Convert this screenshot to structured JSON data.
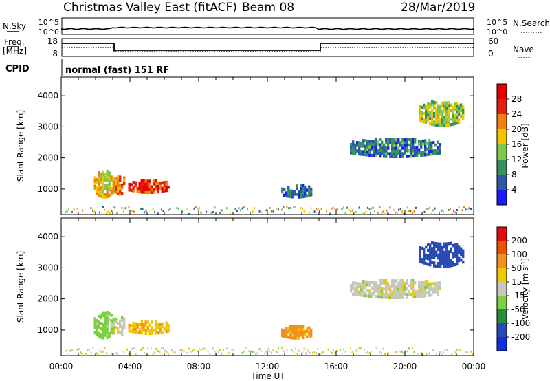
{
  "header": {
    "station_title": "Christmas Valley East (fitACF)",
    "beam_label": "Beam 08",
    "date_label": "28/Mar/2019",
    "cpid_label": "CPID",
    "mode_text": "normal (fast) 151 RF"
  },
  "noise_panel": {
    "left_label": "N.Sky",
    "right_label": "N.Search",
    "left_ticks": [
      "10^5",
      "10^0"
    ],
    "right_ticks": [
      "10^5",
      "10^0"
    ]
  },
  "freq_panel": {
    "left_label_1": "Freq.",
    "left_label_2": "[MHz]",
    "right_label": "Nave",
    "left_ticks": [
      "18",
      "8"
    ],
    "right_ticks": [
      "60",
      "0"
    ]
  },
  "axes": {
    "ylabel": "Slant Range [km]",
    "xlabel": "Time UT",
    "y_ticks": [
      "1000",
      "2000",
      "3000",
      "4000"
    ],
    "x_ticks": [
      "00:00",
      "04:00",
      "08:00",
      "12:00",
      "16:00",
      "20:00",
      "00:00"
    ]
  },
  "power_scale": {
    "label": "Power [dB]",
    "ticks": [
      "4",
      "8",
      "12",
      "16",
      "20",
      "24",
      "28"
    ],
    "colors": [
      "#1a1aff",
      "#2d5aa8",
      "#3a8f5e",
      "#7ec850",
      "#f5c400",
      "#f08010",
      "#e02010",
      "#e80000"
    ]
  },
  "velocity_scale": {
    "label_main": "Velocity [m s",
    "label_sup": "-1",
    "label_end": "]",
    "ticks": [
      "200",
      "100",
      "50",
      "15",
      "-15",
      "-50",
      "-100",
      "-200"
    ],
    "colors": [
      "#1030e0",
      "#2a4ab8",
      "#2a8a40",
      "#7ad040",
      "#c8c8b8",
      "#f0c800",
      "#f09020",
      "#f05000",
      "#e01010"
    ]
  },
  "chart_data": [
    {
      "type": "heatmap",
      "title": "Power [dB]",
      "xlabel": "Time UT",
      "ylabel": "Slant Range [km]",
      "xlim_hours": [
        0,
        24
      ],
      "ylim_km": [
        180,
        4600
      ],
      "colorbar_range": [
        0,
        32
      ],
      "echo_regions": [
        {
          "t_start": 1.9,
          "t_end": 3.0,
          "r_min": 700,
          "r_max": 1550,
          "value": 18
        },
        {
          "t_start": 3.0,
          "t_end": 3.7,
          "r_min": 800,
          "r_max": 1400,
          "value": 22
        },
        {
          "t_start": 3.9,
          "t_end": 6.2,
          "r_min": 850,
          "r_max": 1250,
          "value": 26
        },
        {
          "t_start": 12.8,
          "t_end": 14.5,
          "r_min": 700,
          "r_max": 1100,
          "value": 6
        },
        {
          "t_start": 16.8,
          "t_end": 22.0,
          "r_min": 2000,
          "r_max": 2600,
          "value": 8
        },
        {
          "t_start": 20.8,
          "t_end": 23.4,
          "r_min": 3000,
          "r_max": 3800,
          "value": 14
        }
      ]
    },
    {
      "type": "heatmap",
      "title": "Velocity [m s-1]",
      "xlabel": "Time UT",
      "ylabel": "Slant Range [km]",
      "xlim_hours": [
        0,
        24
      ],
      "ylim_km": [
        180,
        4600
      ],
      "colorbar_range": [
        -250,
        250
      ],
      "echo_regions": [
        {
          "t_start": 1.9,
          "t_end": 3.0,
          "r_min": 700,
          "r_max": 1550,
          "value": 30
        },
        {
          "t_start": 3.0,
          "t_end": 3.7,
          "r_min": 800,
          "r_max": 1400,
          "value": 0
        },
        {
          "t_start": 3.9,
          "t_end": 6.2,
          "r_min": 850,
          "r_max": 1250,
          "value": -40
        },
        {
          "t_start": 12.8,
          "t_end": 14.5,
          "r_min": 700,
          "r_max": 1100,
          "value": -60
        },
        {
          "t_start": 16.8,
          "t_end": 22.0,
          "r_min": 2000,
          "r_max": 2600,
          "value": 0
        },
        {
          "t_start": 20.8,
          "t_end": 23.4,
          "r_min": 3000,
          "r_max": 3800,
          "value": 180
        }
      ]
    }
  ]
}
